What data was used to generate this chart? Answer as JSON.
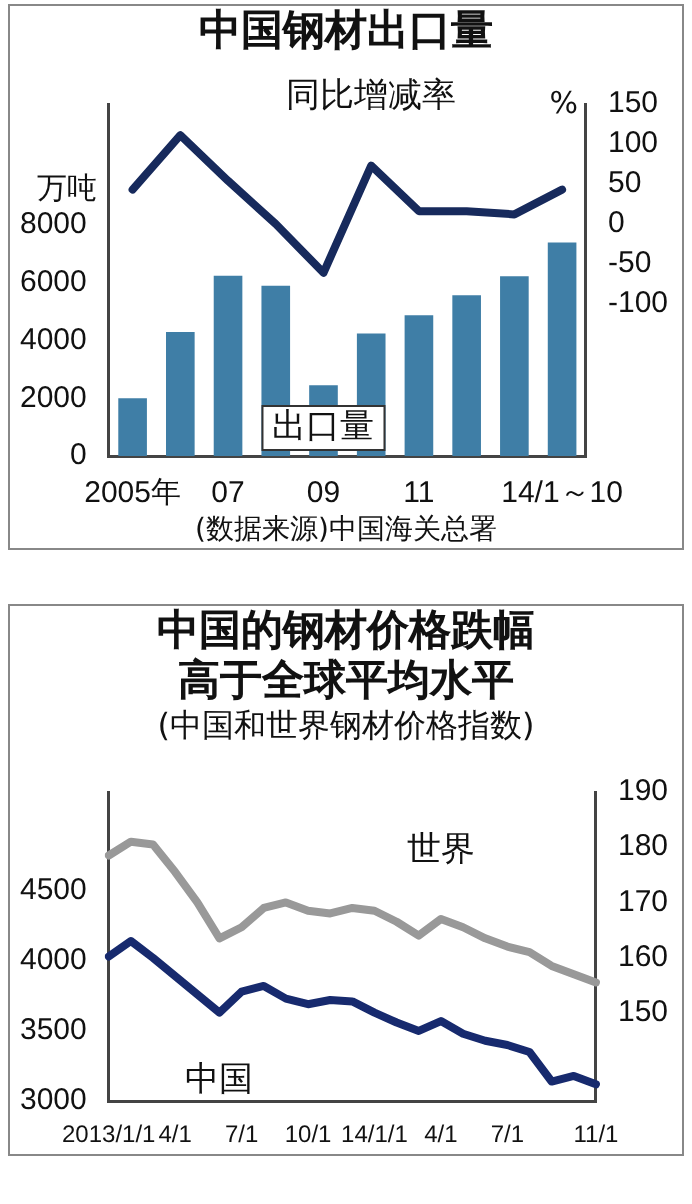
{
  "chart_data": [
    {
      "type": "bar",
      "title": "中国钢材出口量",
      "ylabel": "万吨",
      "y2label": "%",
      "categories": [
        "2005年",
        null,
        "07",
        null,
        "09",
        null,
        "11",
        null,
        null,
        "14/1～10"
      ],
      "series": [
        {
          "name": "出口量",
          "type": "bar",
          "color": "#3f7ea6",
          "values": [
            2000,
            4300,
            6250,
            5900,
            2450,
            4250,
            4880,
            5570,
            6230,
            7400
          ]
        },
        {
          "name": "同比增减率",
          "type": "line",
          "axis": "y2",
          "color": "#172a5c",
          "values": [
            43,
            111,
            54,
            0,
            -61,
            73,
            16,
            16,
            12,
            43
          ]
        }
      ],
      "ylim": [
        0,
        12200
      ],
      "yticks": [
        0,
        2000,
        4000,
        6000,
        8000
      ],
      "y2lim": [
        -290,
        150
      ],
      "y2ticks": [
        -100,
        -50,
        0,
        50,
        100,
        150
      ],
      "grid": false,
      "legend": false,
      "marker": "none",
      "annotations": [
        "(数据来源)中国海关总署"
      ]
    },
    {
      "type": "line",
      "title": "中国的钢材价格跌幅高于全球平均水平",
      "subtitle": "(中国和世界钢材价格指数)",
      "categories": [
        "2013/1/1",
        null,
        null,
        "4/1",
        null,
        null,
        "7/1",
        null,
        null,
        "10/1",
        null,
        null,
        "14/1/1",
        null,
        null,
        "4/1",
        null,
        null,
        "7/1",
        null,
        null,
        null,
        "11/1"
      ],
      "series": [
        {
          "name": "世界",
          "axis": "y2",
          "color": "#999999",
          "values": [
            178.5,
            181,
            180.5,
            175.5,
            170,
            163.5,
            165.5,
            169,
            170,
            168.5,
            168,
            169,
            168.5,
            166.5,
            164,
            167,
            165.5,
            163.5,
            162,
            161,
            158.5,
            157,
            155.5
          ]
        },
        {
          "name": "中国",
          "color": "#172a6e",
          "values": [
            4030,
            4140,
            4020,
            3890,
            3760,
            3630,
            3780,
            3820,
            3730,
            3690,
            3720,
            3710,
            3630,
            3560,
            3500,
            3570,
            3480,
            3430,
            3400,
            3350,
            3140,
            3180,
            3120
          ]
        }
      ],
      "ylim": [
        3000,
        5200
      ],
      "yticks": [
        3000,
        3500,
        4000,
        4500
      ],
      "y2lim": [
        134,
        190
      ],
      "y2ticks": [
        150,
        160,
        170,
        180,
        190
      ],
      "grid": false,
      "legend": false,
      "marker": "none"
    }
  ]
}
